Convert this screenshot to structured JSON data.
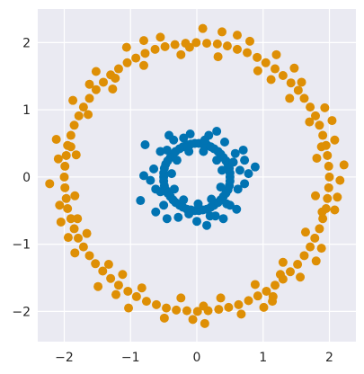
{
  "chart_data": {
    "type": "scatter",
    "title": "",
    "xlabel": "",
    "ylabel": "",
    "xlim": [
      -2.4,
      2.4
    ],
    "ylim": [
      -2.45,
      2.5
    ],
    "x_ticks": [
      {
        "value": -2,
        "label": "−2"
      },
      {
        "value": -1,
        "label": "−1"
      },
      {
        "value": 0,
        "label": "0"
      },
      {
        "value": 1,
        "label": "1"
      },
      {
        "value": 2,
        "label": "2"
      }
    ],
    "y_ticks": [
      {
        "value": -2,
        "label": "−2"
      },
      {
        "value": -1,
        "label": "−1"
      },
      {
        "value": 0,
        "label": "0"
      },
      {
        "value": 1,
        "label": "1"
      },
      {
        "value": 2,
        "label": "2"
      }
    ],
    "grid": true,
    "legend": "none",
    "series": [
      {
        "color": "#de8f05",
        "points": [
          [
            2.0,
            0.0
          ],
          [
            1.99,
            0.16
          ],
          [
            1.97,
            0.32
          ],
          [
            1.95,
            0.47
          ],
          [
            1.9,
            0.62
          ],
          [
            1.85,
            0.77
          ],
          [
            1.79,
            0.91
          ],
          [
            1.71,
            1.04
          ],
          [
            1.62,
            1.17
          ],
          [
            1.53,
            1.29
          ],
          [
            1.42,
            1.4
          ],
          [
            1.3,
            1.51
          ],
          [
            1.18,
            1.61
          ],
          [
            1.04,
            1.7
          ],
          [
            0.91,
            1.78
          ],
          [
            0.76,
            1.85
          ],
          [
            0.61,
            1.9
          ],
          [
            0.46,
            1.95
          ],
          [
            0.31,
            1.98
          ],
          [
            0.15,
            1.99
          ],
          [
            -0.01,
            2.0
          ],
          [
            -0.17,
            1.99
          ],
          [
            -0.33,
            1.97
          ],
          [
            -0.48,
            1.94
          ],
          [
            -0.63,
            1.9
          ],
          [
            -0.78,
            1.84
          ],
          [
            -0.92,
            1.77
          ],
          [
            -1.05,
            1.7
          ],
          [
            -1.18,
            1.61
          ],
          [
            -1.3,
            1.52
          ],
          [
            -1.41,
            1.41
          ],
          [
            -1.52,
            1.3
          ],
          [
            -1.62,
            1.17
          ],
          [
            -1.71,
            1.04
          ],
          [
            -1.78,
            0.91
          ],
          [
            -1.85,
            0.77
          ],
          [
            -1.9,
            0.62
          ],
          [
            -1.95,
            0.47
          ],
          [
            -1.97,
            0.32
          ],
          [
            -1.99,
            0.16
          ],
          [
            -2.0,
            0.0
          ],
          [
            -1.99,
            -0.16
          ],
          [
            -1.97,
            -0.32
          ],
          [
            -1.95,
            -0.47
          ],
          [
            -1.9,
            -0.62
          ],
          [
            -1.85,
            -0.77
          ],
          [
            -1.79,
            -0.91
          ],
          [
            -1.71,
            -1.04
          ],
          [
            -1.62,
            -1.17
          ],
          [
            -1.53,
            -1.29
          ],
          [
            -1.42,
            -1.4
          ],
          [
            -1.3,
            -1.51
          ],
          [
            -1.18,
            -1.61
          ],
          [
            -1.04,
            -1.7
          ],
          [
            -0.91,
            -1.78
          ],
          [
            -0.76,
            -1.85
          ],
          [
            -0.61,
            -1.9
          ],
          [
            -0.46,
            -1.95
          ],
          [
            -0.31,
            -1.98
          ],
          [
            -0.15,
            -1.99
          ],
          [
            0.01,
            -2.0
          ],
          [
            0.17,
            -1.99
          ],
          [
            0.33,
            -1.97
          ],
          [
            0.48,
            -1.94
          ],
          [
            0.63,
            -1.9
          ],
          [
            0.78,
            -1.84
          ],
          [
            0.92,
            -1.77
          ],
          [
            1.05,
            -1.7
          ],
          [
            1.18,
            -1.61
          ],
          [
            1.3,
            -1.52
          ],
          [
            1.41,
            -1.41
          ],
          [
            1.52,
            -1.3
          ],
          [
            1.62,
            -1.17
          ],
          [
            1.71,
            -1.04
          ],
          [
            1.78,
            -0.91
          ],
          [
            1.85,
            -0.77
          ],
          [
            1.9,
            -0.62
          ],
          [
            1.95,
            -0.47
          ],
          [
            1.97,
            -0.32
          ],
          [
            1.99,
            -0.16
          ],
          [
            2.22,
            0.18
          ],
          [
            2.08,
            0.55
          ],
          [
            1.93,
            1.03
          ],
          [
            1.58,
            1.41
          ],
          [
            1.2,
            1.82
          ],
          [
            0.61,
            2.11
          ],
          [
            0.09,
            2.21
          ],
          [
            -0.55,
            2.08
          ],
          [
            -1.06,
            1.93
          ],
          [
            -1.52,
            1.57
          ],
          [
            -1.87,
            1.14
          ],
          [
            -2.12,
            0.56
          ],
          [
            -2.22,
            -0.1
          ],
          [
            -2.05,
            -0.67
          ],
          [
            -1.84,
            -1.13
          ],
          [
            -1.49,
            -1.63
          ],
          [
            -1.03,
            -1.95
          ],
          [
            -0.49,
            -2.1
          ],
          [
            0.12,
            -2.18
          ],
          [
            0.67,
            -2.04
          ],
          [
            1.14,
            -1.85
          ],
          [
            1.56,
            -1.49
          ],
          [
            1.88,
            -1.06
          ],
          [
            2.08,
            -0.49
          ],
          [
            2.16,
            -0.05
          ],
          [
            1.81,
            0.28
          ],
          [
            1.7,
            0.82
          ],
          [
            1.4,
            1.17
          ],
          [
            0.92,
            1.58
          ],
          [
            0.32,
            1.79
          ],
          [
            -0.24,
            1.82
          ],
          [
            -0.8,
            1.66
          ],
          [
            -1.27,
            1.31
          ],
          [
            -1.64,
            0.93
          ],
          [
            -1.82,
            0.33
          ],
          [
            -1.84,
            -0.28
          ],
          [
            -1.66,
            -0.84
          ],
          [
            -1.33,
            -1.3
          ],
          [
            -0.83,
            -1.65
          ],
          [
            -0.24,
            -1.8
          ],
          [
            0.36,
            -1.8
          ],
          [
            0.88,
            -1.6
          ],
          [
            1.3,
            -1.27
          ],
          [
            1.64,
            -0.82
          ],
          [
            1.79,
            -0.28
          ],
          [
            2.04,
            0.84
          ],
          [
            1.47,
            1.62
          ],
          [
            0.38,
            2.16
          ],
          [
            -0.8,
            2.03
          ],
          [
            -1.62,
            1.38
          ],
          [
            -2.09,
            0.27
          ],
          [
            -1.94,
            -0.9
          ],
          [
            -1.22,
            -1.75
          ],
          [
            -0.06,
            -2.12
          ],
          [
            1.01,
            -1.94
          ],
          [
            1.8,
            -1.25
          ],
          [
            2.12,
            -0.3
          ],
          [
            1.88,
            0.45
          ],
          [
            1.12,
            1.45
          ],
          [
            -0.11,
            1.93
          ],
          [
            -1.23,
            1.47
          ],
          [
            -1.9,
            0.45
          ],
          [
            -1.8,
            -0.62
          ],
          [
            -1.12,
            -1.45
          ],
          [
            0.1,
            -1.92
          ],
          [
            1.26,
            -1.45
          ],
          [
            1.89,
            -0.52
          ],
          [
            0.8,
            2.02
          ],
          [
            -2.07,
            -0.42
          ],
          [
            1.15,
            -1.78
          ]
        ]
      },
      {
        "color": "#0173b2",
        "points": [
          [
            0.5,
            0.0
          ],
          [
            0.5,
            0.06
          ],
          [
            0.49,
            0.13
          ],
          [
            0.47,
            0.19
          ],
          [
            0.44,
            0.24
          ],
          [
            0.4,
            0.29
          ],
          [
            0.36,
            0.34
          ],
          [
            0.32,
            0.38
          ],
          [
            0.26,
            0.42
          ],
          [
            0.21,
            0.45
          ],
          [
            0.15,
            0.48
          ],
          [
            0.09,
            0.49
          ],
          [
            0.03,
            0.5
          ],
          [
            -0.03,
            0.5
          ],
          [
            -0.09,
            0.49
          ],
          [
            -0.15,
            0.48
          ],
          [
            -0.21,
            0.45
          ],
          [
            -0.26,
            0.42
          ],
          [
            -0.32,
            0.38
          ],
          [
            -0.36,
            0.34
          ],
          [
            -0.4,
            0.29
          ],
          [
            -0.44,
            0.24
          ],
          [
            -0.47,
            0.19
          ],
          [
            -0.49,
            0.13
          ],
          [
            -0.5,
            0.06
          ],
          [
            -0.5,
            0.0
          ],
          [
            -0.5,
            -0.06
          ],
          [
            -0.49,
            -0.13
          ],
          [
            -0.47,
            -0.19
          ],
          [
            -0.44,
            -0.24
          ],
          [
            -0.4,
            -0.29
          ],
          [
            -0.36,
            -0.34
          ],
          [
            -0.32,
            -0.38
          ],
          [
            -0.26,
            -0.42
          ],
          [
            -0.21,
            -0.45
          ],
          [
            -0.15,
            -0.48
          ],
          [
            -0.09,
            -0.49
          ],
          [
            -0.03,
            -0.5
          ],
          [
            0.03,
            -0.5
          ],
          [
            0.09,
            -0.49
          ],
          [
            0.15,
            -0.48
          ],
          [
            0.21,
            -0.45
          ],
          [
            0.26,
            -0.42
          ],
          [
            0.32,
            -0.38
          ],
          [
            0.36,
            -0.34
          ],
          [
            0.4,
            -0.29
          ],
          [
            0.44,
            -0.24
          ],
          [
            0.47,
            -0.19
          ],
          [
            0.49,
            -0.13
          ],
          [
            0.5,
            -0.06
          ],
          [
            0.65,
            0.1
          ],
          [
            0.58,
            0.35
          ],
          [
            0.42,
            0.52
          ],
          [
            0.18,
            0.62
          ],
          [
            -0.1,
            0.64
          ],
          [
            -0.35,
            0.55
          ],
          [
            -0.55,
            0.38
          ],
          [
            -0.65,
            0.12
          ],
          [
            -0.62,
            -0.18
          ],
          [
            -0.5,
            -0.42
          ],
          [
            -0.28,
            -0.6
          ],
          [
            0.0,
            -0.66
          ],
          [
            0.28,
            -0.58
          ],
          [
            0.5,
            -0.42
          ],
          [
            0.62,
            -0.18
          ],
          [
            0.38,
            0.1
          ],
          [
            0.3,
            0.25
          ],
          [
            0.1,
            0.38
          ],
          [
            -0.12,
            0.38
          ],
          [
            -0.3,
            0.25
          ],
          [
            -0.38,
            0.05
          ],
          [
            -0.34,
            -0.18
          ],
          [
            -0.2,
            -0.34
          ],
          [
            0.02,
            -0.4
          ],
          [
            0.22,
            -0.33
          ],
          [
            0.36,
            -0.15
          ],
          [
            0.88,
            0.15
          ],
          [
            0.72,
            0.25
          ],
          [
            -0.78,
            0.48
          ],
          [
            -0.8,
            0.02
          ],
          [
            -0.85,
            -0.35
          ],
          [
            -0.62,
            -0.52
          ],
          [
            -0.45,
            -0.62
          ],
          [
            0.15,
            -0.72
          ],
          [
            0.4,
            -0.62
          ],
          [
            0.6,
            -0.48
          ],
          [
            0.72,
            -0.1
          ],
          [
            0.7,
            0.4
          ],
          [
            0.3,
            0.68
          ],
          [
            -0.42,
            0.62
          ],
          [
            0.55,
            0.22
          ],
          [
            -0.55,
            -0.22
          ],
          [
            0.12,
            0.55
          ],
          [
            -0.12,
            -0.55
          ],
          [
            0.45,
            -0.4
          ],
          [
            -0.45,
            0.4
          ],
          [
            0.78,
            0.05
          ],
          [
            -0.7,
            -0.05
          ],
          [
            0.2,
            -0.58
          ],
          [
            -0.2,
            0.58
          ]
        ]
      }
    ]
  }
}
